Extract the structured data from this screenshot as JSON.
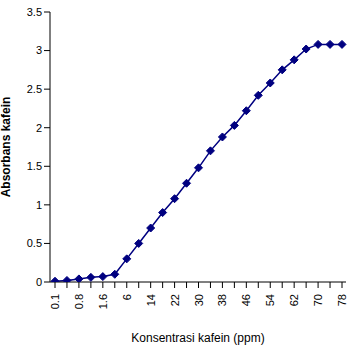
{
  "chart_data": {
    "type": "line",
    "x_label": "Konsentrasi kafein (ppm)",
    "y_label": "Absorbans kafein",
    "categories": [
      "0.1",
      null,
      "0.8",
      null,
      "1.6",
      null,
      "6",
      null,
      "14",
      null,
      "22",
      null,
      "30",
      null,
      "38",
      null,
      "46",
      null,
      "54",
      null,
      "62",
      null,
      "70",
      null,
      "78"
    ],
    "values": [
      0.01,
      0.02,
      0.04,
      0.06,
      0.07,
      0.1,
      0.3,
      0.5,
      0.7,
      0.9,
      1.08,
      1.28,
      1.48,
      1.7,
      1.88,
      2.03,
      2.22,
      2.42,
      2.58,
      2.75,
      2.88,
      3.02,
      3.08,
      3.08,
      3.08
    ],
    "color": "#000080",
    "marker": "diamond",
    "ylim": [
      0,
      3.5
    ],
    "yticks": [
      0,
      0.5,
      1,
      1.5,
      2,
      2.5,
      3,
      3.5
    ],
    "grid": false
  }
}
